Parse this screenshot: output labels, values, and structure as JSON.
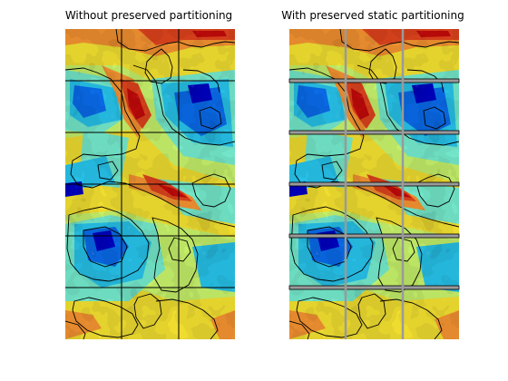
{
  "figure": {
    "panels": [
      {
        "title": "Without preserved partitioning",
        "grid_style": "thin black lines"
      },
      {
        "title": "With preserved static partitioning",
        "grid_style": "grey bands with black edges"
      }
    ]
  },
  "colors": {
    "background": "#ffffff",
    "contour": "#000000",
    "partition_band": "#9a9a9a",
    "colormap": [
      "#0000c8",
      "#0a6ef0",
      "#28c8f0",
      "#78f0d2",
      "#cdfa6e",
      "#fae632",
      "#fa9632",
      "#e6461e",
      "#c80a0a"
    ]
  }
}
